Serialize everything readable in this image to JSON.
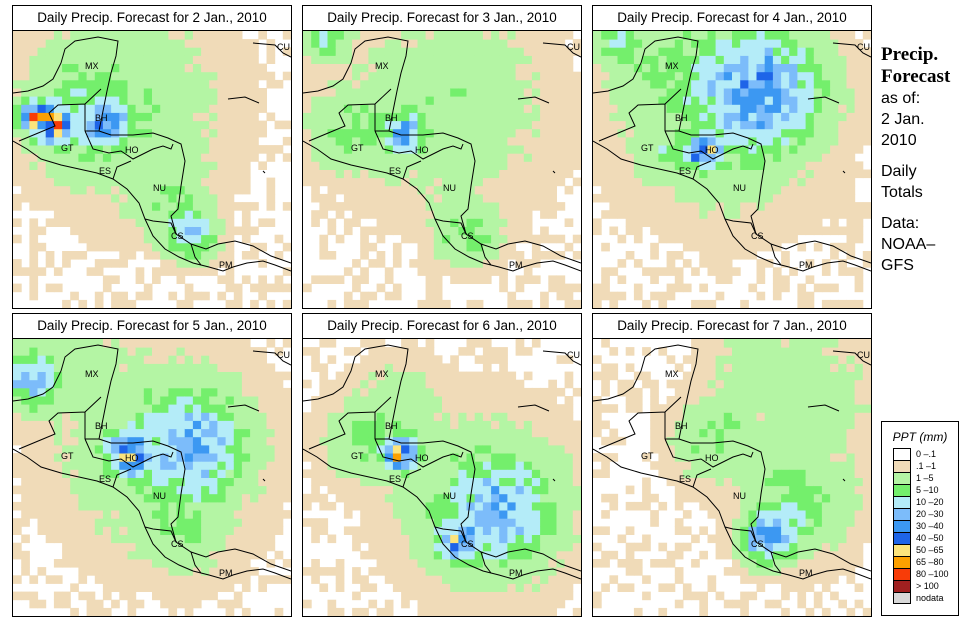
{
  "panels": [
    {
      "title": "Daily Precip. Forecast for  2 Jan., 2010",
      "blobs": [
        {
          "lon": -91.5,
          "lat": 17.3,
          "r": 0.9,
          "peak": 70
        },
        {
          "lon": -92.8,
          "lat": 17.8,
          "r": 0.7,
          "peak": 55
        },
        {
          "lon": -88.3,
          "lat": 17.4,
          "r": 1.0,
          "peak": 30
        },
        {
          "lon": -87,
          "lat": 18.5,
          "r": 4.5,
          "peak": 4
        },
        {
          "lon": -90,
          "lat": 18,
          "r": 2.5,
          "peak": 8
        },
        {
          "lon": -83.2,
          "lat": 10.6,
          "r": 1.2,
          "peak": 18
        },
        {
          "lon": -84.5,
          "lat": 13,
          "r": 2,
          "peak": 4
        }
      ]
    },
    {
      "title": "Daily Precip. Forecast for  3 Jan., 2010",
      "blobs": [
        {
          "lon": -87.8,
          "lat": 16.7,
          "r": 1.0,
          "peak": 28
        },
        {
          "lon": -85,
          "lat": 18.5,
          "r": 4.5,
          "peak": 4
        },
        {
          "lon": -91,
          "lat": 17,
          "r": 2,
          "peak": 6
        },
        {
          "lon": -84,
          "lat": 10.5,
          "r": 1.5,
          "peak": 8
        },
        {
          "lon": -92.5,
          "lat": 22.5,
          "r": 1,
          "peak": 12
        }
      ]
    },
    {
      "title": "Daily Precip. Forecast for  4 Jan., 2010",
      "blobs": [
        {
          "lon": -83.8,
          "lat": 19.5,
          "r": 2.8,
          "peak": 32
        },
        {
          "lon": -87.2,
          "lat": 15.6,
          "r": 0.7,
          "peak": 58
        },
        {
          "lon": -86,
          "lat": 18,
          "r": 4.5,
          "peak": 6
        },
        {
          "lon": -90,
          "lat": 21,
          "r": 2.5,
          "peak": 4
        },
        {
          "lon": -92.5,
          "lat": 22.5,
          "r": 1,
          "peak": 12
        },
        {
          "lon": -89.5,
          "lat": 15.5,
          "r": 1,
          "peak": 6
        }
      ]
    },
    {
      "title": "Daily Precip. Forecast for  5 Jan., 2010",
      "blobs": [
        {
          "lon": -93,
          "lat": 20.5,
          "r": 1.3,
          "peak": 22
        },
        {
          "lon": -87,
          "lat": 16,
          "r": 1.0,
          "peak": 48
        },
        {
          "lon": -83,
          "lat": 16.5,
          "r": 2.4,
          "peak": 25
        },
        {
          "lon": -85,
          "lat": 16,
          "r": 4.5,
          "peak": 5
        },
        {
          "lon": -83.5,
          "lat": 11,
          "r": 2,
          "peak": 4
        },
        {
          "lon": -90.5,
          "lat": 21.5,
          "r": 2.5,
          "peak": 3
        }
      ]
    },
    {
      "title": "Daily Precip. Forecast for  6 Jan., 2010",
      "blobs": [
        {
          "lon": -88,
          "lat": 16,
          "r": 0.8,
          "peak": 58
        },
        {
          "lon": -82,
          "lat": 12.5,
          "r": 2.5,
          "peak": 22
        },
        {
          "lon": -84.6,
          "lat": 10.6,
          "r": 0.9,
          "peak": 38
        },
        {
          "lon": -83,
          "lat": 13,
          "r": 4,
          "peak": 5
        },
        {
          "lon": -90,
          "lat": 17,
          "r": 2,
          "peak": 6
        },
        {
          "lon": -88,
          "lat": 19,
          "r": 2,
          "peak": 3
        }
      ]
    },
    {
      "title": "Daily Precip. Forecast for  7 Jan., 2010",
      "blobs": [
        {
          "lon": -83.3,
          "lat": 10.8,
          "r": 1.2,
          "peak": 32
        },
        {
          "lon": -81.5,
          "lat": 13,
          "r": 2.5,
          "peak": 8
        },
        {
          "lon": -86.5,
          "lat": 17,
          "r": 2,
          "peak": 6
        },
        {
          "lon": -80.5,
          "lat": 19.5,
          "r": 3,
          "peak": 3
        },
        {
          "lon": -84,
          "lat": 21.5,
          "r": 2,
          "peak": 3
        }
      ]
    }
  ],
  "map_extent": {
    "lon": [
      -94,
      -77
    ],
    "lat": [
      6,
      23
    ]
  },
  "country_labels": [
    "MX",
    "BH",
    "GT",
    "HO",
    "ES",
    "NU",
    "CS",
    "PM",
    "CU"
  ],
  "side": {
    "title1": "Precip.",
    "title2": "Forecast",
    "asof": "as of:",
    "date1": "2 Jan.",
    "date2": "2010",
    "daily1": "Daily",
    "daily2": "Totals",
    "data1": "Data:",
    "data2": "NOAA–",
    "data3": "GFS"
  },
  "legend": {
    "title": "PPT (mm)",
    "breaks": [
      0.1,
      1,
      5,
      10,
      20,
      30,
      40,
      50,
      65,
      80,
      100
    ],
    "items": [
      {
        "label": "0 –.1",
        "color": "#ffffff"
      },
      {
        "label": ".1 –1",
        "color": "#f0dbb8"
      },
      {
        "label": "1 –5",
        "color": "#b4f5a4"
      },
      {
        "label": "5 –10",
        "color": "#74ef6c"
      },
      {
        "label": "10 –20",
        "color": "#b4ecf8"
      },
      {
        "label": "20 –30",
        "color": "#7cbcfa"
      },
      {
        "label": "30 –40",
        "color": "#3c98f2"
      },
      {
        "label": "40 –50",
        "color": "#1e64e8"
      },
      {
        "label": "50 –65",
        "color": "#fce47c"
      },
      {
        "label": "65 –80",
        "color": "#fca000"
      },
      {
        "label": "80 –100",
        "color": "#f83c08"
      },
      {
        "label": "> 100",
        "color": "#a02020"
      },
      {
        "label": "nodata",
        "color": "#d8d8d8"
      }
    ]
  }
}
